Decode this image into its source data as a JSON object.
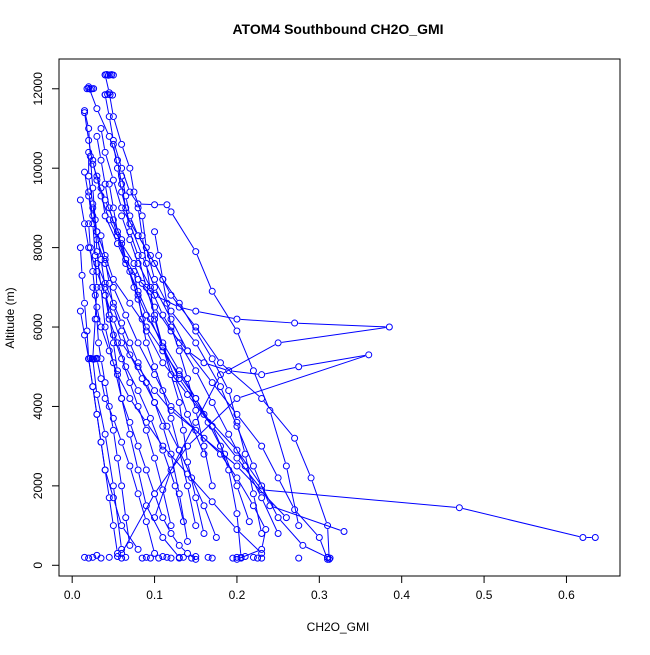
{
  "chart_data": {
    "type": "scatter",
    "title": "ATOM4 Southbound CH2O_GMI",
    "xlabel": "CH2O_GMI",
    "ylabel": "Altitude (m)",
    "xlim": [
      -0.016,
      0.665
    ],
    "ylim": [
      -270,
      12750
    ],
    "x_ticks": [
      "0.0",
      "0.1",
      "0.2",
      "0.3",
      "0.4",
      "0.5",
      "0.6"
    ],
    "y_ticks": [
      "0",
      "2000",
      "4000",
      "6000",
      "8000",
      "10000",
      "12000"
    ],
    "grid": false,
    "legend": "none",
    "color": "#0000ff",
    "marker": "open-circle",
    "connected": true,
    "series": [
      {
        "x": [
          0.02,
          0.03,
          0.045,
          0.055,
          0.06,
          0.065,
          0.07,
          0.08,
          0.09,
          0.1,
          0.11,
          0.13,
          0.16,
          0.2,
          0.23,
          0.25,
          0.28,
          0.31
        ],
        "y": [
          12050,
          11500,
          10800,
          10200,
          9600,
          9000,
          8400,
          7800,
          7000,
          6300,
          5500,
          4700,
          3800,
          2900,
          2000,
          1200,
          500,
          200
        ]
      },
      {
        "x": [
          0.04,
          0.045,
          0.05,
          0.06,
          0.07,
          0.075,
          0.085,
          0.09,
          0.1,
          0.12,
          0.15,
          0.18,
          0.2,
          0.22,
          0.24,
          0.33
        ],
        "y": [
          12350,
          11900,
          11300,
          10600,
          10000,
          9400,
          8800,
          8000,
          7200,
          6400,
          5600,
          4500,
          3500,
          2500,
          1500,
          850
        ]
      },
      {
        "x": [
          0.015,
          0.02,
          0.025,
          0.035,
          0.04,
          0.055,
          0.07,
          0.08,
          0.09,
          0.11,
          0.14,
          0.17,
          0.2,
          0.23,
          0.47,
          0.62,
          0.635
        ],
        "y": [
          11400,
          10700,
          10100,
          9500,
          8800,
          8100,
          7400,
          6700,
          5900,
          5100,
          4300,
          3500,
          2700,
          1900,
          1450,
          700,
          700
        ]
      },
      {
        "x": [
          0.025,
          0.03,
          0.04,
          0.05,
          0.06,
          0.065,
          0.08,
          0.1,
          0.13,
          0.15,
          0.2,
          0.27,
          0.385,
          0.25,
          0.18,
          0.15,
          0.12,
          0.1
        ],
        "y": [
          10200,
          9700,
          9200,
          8700,
          8200,
          7700,
          7200,
          6800,
          6500,
          6400,
          6200,
          6100,
          6000,
          5600,
          4800,
          3600,
          2400,
          1200
        ]
      },
      {
        "x": [
          0.03,
          0.035,
          0.045,
          0.06,
          0.075,
          0.085,
          0.1,
          0.12,
          0.14,
          0.16,
          0.19,
          0.23,
          0.275,
          0.36,
          0.2,
          0.14,
          0.1,
          0.06
        ],
        "y": [
          9800,
          9300,
          8700,
          8100,
          7600,
          7100,
          6500,
          5900,
          5400,
          5100,
          4900,
          4800,
          5000,
          5300,
          4200,
          3000,
          1800,
          300
        ]
      },
      {
        "x": [
          0.01,
          0.015,
          0.02,
          0.03,
          0.04,
          0.05,
          0.06,
          0.08,
          0.1,
          0.12,
          0.15,
          0.18,
          0.2,
          0.22,
          0.235,
          0.23,
          0.2
        ],
        "y": [
          9200,
          8600,
          8000,
          7400,
          6800,
          6200,
          5600,
          5000,
          4400,
          3900,
          3400,
          2800,
          2200,
          1500,
          900,
          400,
          150
        ]
      },
      {
        "x": [
          0.035,
          0.04,
          0.05,
          0.06,
          0.08,
          0.1,
          0.12,
          0.15,
          0.18,
          0.23,
          0.27,
          0.29,
          0.31,
          0.312
        ],
        "y": [
          11000,
          10400,
          9700,
          9000,
          8300,
          7600,
          6800,
          6000,
          5100,
          4200,
          3200,
          2200,
          1000,
          150
        ]
      },
      {
        "x": [
          0.06,
          0.065,
          0.07,
          0.08,
          0.095,
          0.11,
          0.13,
          0.15,
          0.17,
          0.19,
          0.2,
          0.21,
          0.22,
          0.23
        ],
        "y": [
          9800,
          9300,
          8800,
          8300,
          7800,
          7200,
          6600,
          5900,
          5200,
          4400,
          3600,
          2800,
          1800,
          800
        ]
      },
      {
        "x": [
          0.02,
          0.02,
          0.025,
          0.03,
          0.035,
          0.04,
          0.045,
          0.05,
          0.055,
          0.06,
          0.07,
          0.08,
          0.09,
          0.1,
          0.11,
          0.12,
          0.13,
          0.14,
          0.15
        ],
        "y": [
          10400,
          9800,
          9100,
          8400,
          7700,
          7000,
          6300,
          5600,
          4900,
          4200,
          3600,
          3000,
          2400,
          1800,
          1200,
          800,
          500,
          300,
          150
        ]
      },
      {
        "x": [
          0.015,
          0.02,
          0.022,
          0.025,
          0.028,
          0.03,
          0.035,
          0.04,
          0.05,
          0.06,
          0.07,
          0.08,
          0.09,
          0.11,
          0.13
        ],
        "y": [
          11450,
          11000,
          10300,
          9500,
          8700,
          7900,
          7000,
          6000,
          5100,
          4200,
          3300,
          2400,
          1500,
          700,
          200
        ]
      },
      {
        "x": [
          0.04,
          0.045,
          0.05,
          0.06,
          0.07,
          0.08,
          0.1,
          0.115,
          0.12,
          0.15,
          0.17,
          0.2,
          0.22,
          0.24,
          0.26,
          0.275
        ],
        "y": [
          11850,
          11300,
          10700,
          10000,
          9400,
          9100,
          9080,
          9080,
          8900,
          7900,
          6900,
          5900,
          4900,
          3900,
          2500,
          1000
        ]
      },
      {
        "x": [
          0.025,
          0.03,
          0.04,
          0.05,
          0.07,
          0.09,
          0.11,
          0.13,
          0.15,
          0.165,
          0.18,
          0.19,
          0.2,
          0.205
        ],
        "y": [
          9000,
          8400,
          7800,
          7200,
          6600,
          6000,
          5400,
          4800,
          4200,
          3600,
          3000,
          2400,
          1300,
          200
        ]
      },
      {
        "x": [
          0.02,
          0.022,
          0.025,
          0.028,
          0.03,
          0.032,
          0.035,
          0.04,
          0.045,
          0.05,
          0.055,
          0.06,
          0.065,
          0.07
        ],
        "y": [
          8600,
          8000,
          7400,
          6800,
          6200,
          5600,
          5200,
          4600,
          4000,
          3400,
          2700,
          2000,
          1200,
          500
        ]
      },
      {
        "x": [
          0.05,
          0.055,
          0.06,
          0.07,
          0.085,
          0.1,
          0.12,
          0.14,
          0.17,
          0.2,
          0.23,
          0.25,
          0.27,
          0.3,
          0.31
        ],
        "y": [
          10600,
          10000,
          9400,
          8600,
          7800,
          7000,
          6200,
          5400,
          4600,
          3800,
          3000,
          2200,
          1400,
          700,
          150
        ]
      },
      {
        "x": [
          0.03,
          0.035,
          0.04,
          0.045,
          0.055,
          0.065,
          0.08,
          0.095,
          0.11,
          0.12,
          0.13,
          0.135,
          0.14,
          0.15,
          0.16
        ],
        "y": [
          10800,
          10200,
          9600,
          9000,
          8300,
          7600,
          6900,
          6200,
          5500,
          4800,
          4100,
          3400,
          2600,
          1700,
          800
        ]
      },
      {
        "x": [
          0.01,
          0.012,
          0.015,
          0.018,
          0.02,
          0.025,
          0.03,
          0.035,
          0.04,
          0.045,
          0.05,
          0.055
        ],
        "y": [
          8000,
          7300,
          6600,
          5900,
          5200,
          4500,
          3800,
          3100,
          2400,
          1700,
          1000,
          300
        ]
      },
      {
        "x": [
          0.045,
          0.05,
          0.055,
          0.065,
          0.075,
          0.09,
          0.11,
          0.13,
          0.15,
          0.17,
          0.185,
          0.2,
          0.215
        ],
        "y": [
          9600,
          9000,
          8400,
          7700,
          7000,
          6300,
          5600,
          4900,
          4200,
          3500,
          2800,
          2000,
          1100
        ]
      },
      {
        "x": [
          0.03,
          0.04,
          0.05,
          0.06,
          0.07,
          0.08,
          0.09,
          0.1,
          0.11,
          0.12,
          0.13,
          0.14
        ],
        "y": [
          7600,
          7100,
          6600,
          6100,
          5600,
          5100,
          4600,
          4100,
          3500,
          2800,
          1800,
          600
        ]
      },
      {
        "x": [
          0.015,
          0.02,
          0.025,
          0.028,
          0.03,
          0.028,
          0.025,
          0.03,
          0.04,
          0.05,
          0.06
        ],
        "y": [
          9900,
          9300,
          8600,
          7800,
          7000,
          6200,
          5200,
          4300,
          3300,
          2000,
          400
        ]
      },
      {
        "x": [
          0.06,
          0.07,
          0.08,
          0.095,
          0.11,
          0.13,
          0.15,
          0.17,
          0.19,
          0.21,
          0.23,
          0.25
        ],
        "y": [
          8800,
          8200,
          7600,
          7000,
          6300,
          5600,
          4900,
          4100,
          3300,
          2500,
          1700,
          800
        ]
      },
      {
        "x": [
          0.02,
          0.025,
          0.03,
          0.04,
          0.05,
          0.065,
          0.08,
          0.1,
          0.12,
          0.16,
          0.2,
          0.26
        ],
        "y": [
          9400,
          8800,
          8200,
          7600,
          7000,
          6300,
          5600,
          4800,
          4000,
          3200,
          2500,
          1200
        ]
      },
      {
        "x": [
          0.075,
          0.08,
          0.085,
          0.09,
          0.1,
          0.11,
          0.12,
          0.13,
          0.14,
          0.15
        ],
        "y": [
          7400,
          6800,
          6200,
          5600,
          5000,
          4400,
          3700,
          2900,
          2000,
          1000
        ]
      },
      {
        "x": [
          0.035,
          0.04,
          0.045,
          0.05,
          0.06,
          0.07,
          0.085,
          0.1,
          0.115,
          0.13,
          0.145,
          0.16,
          0.175
        ],
        "y": [
          8300,
          7700,
          7100,
          6500,
          5900,
          5300,
          4700,
          4100,
          3500,
          2900,
          2200,
          1500,
          700
        ]
      },
      {
        "x": [
          0.1,
          0.105,
          0.11,
          0.115,
          0.12,
          0.13,
          0.14,
          0.15,
          0.16,
          0.17
        ],
        "y": [
          8400,
          7800,
          7200,
          6600,
          6000,
          5400,
          4700,
          3900,
          3000,
          2000
        ]
      },
      {
        "x": [
          0.05,
          0.06,
          0.07,
          0.08,
          0.09,
          0.1,
          0.11,
          0.12
        ],
        "y": [
          5800,
          5200,
          4600,
          4000,
          3400,
          2700,
          1900,
          1000
        ]
      },
      {
        "x": [
          0.03,
          0.035,
          0.04,
          0.05,
          0.06,
          0.07,
          0.08,
          0.09,
          0.1
        ],
        "y": [
          5200,
          4700,
          4200,
          3700,
          3100,
          2500,
          1800,
          1100,
          300
        ]
      },
      {
        "x": [
          0.025,
          0.03,
          0.035,
          0.045,
          0.055,
          0.07,
          0.09,
          0.11,
          0.14,
          0.17,
          0.2,
          0.23
        ],
        "y": [
          7000,
          6500,
          6000,
          5400,
          4800,
          4200,
          3600,
          3000,
          2300,
          1600,
          900,
          300
        ]
      },
      {
        "x": [
          0.08,
          0.085,
          0.09,
          0.095,
          0.1,
          0.11,
          0.125,
          0.14,
          0.16
        ],
        "y": [
          9000,
          8300,
          7600,
          6900,
          6200,
          5500,
          4700,
          3800,
          2800
        ]
      },
      {
        "x": [
          0.01,
          0.015,
          0.02,
          0.025,
          0.03,
          0.035,
          0.04,
          0.05,
          0.06,
          0.08
        ],
        "y": [
          6400,
          5800,
          5200,
          4500,
          3800,
          3100,
          2400,
          1700,
          1000,
          400
        ]
      },
      {
        "x": [
          0.04,
          0.045,
          0.055,
          0.065,
          0.08,
          0.095,
          0.11,
          0.125,
          0.135
        ],
        "y": [
          6800,
          6200,
          5600,
          5000,
          4400,
          3700,
          2900,
          2000,
          1100
        ]
      }
    ],
    "surface_points": {
      "x": [
        0.015,
        0.02,
        0.025,
        0.03,
        0.035,
        0.045,
        0.055,
        0.06,
        0.065,
        0.085,
        0.09,
        0.095,
        0.105,
        0.11,
        0.115,
        0.12,
        0.13,
        0.135,
        0.145,
        0.15,
        0.165,
        0.17,
        0.195,
        0.2,
        0.205,
        0.21,
        0.22,
        0.225,
        0.23,
        0.275,
        0.31,
        0.313
      ],
      "y": [
        200,
        180,
        200,
        250,
        180,
        200,
        220,
        180,
        200,
        180,
        200,
        180,
        180,
        220,
        200,
        180,
        180,
        200,
        180,
        220,
        200,
        180,
        180,
        200,
        180,
        220,
        200,
        180,
        180,
        180,
        200,
        180
      ]
    },
    "clusters": {
      "x": [
        0.02,
        0.022,
        0.024,
        0.026,
        0.028,
        0.03,
        0.018,
        0.02,
        0.022,
        0.024,
        0.026,
        0.04,
        0.042,
        0.044,
        0.046,
        0.048,
        0.05,
        0.04,
        0.043,
        0.046,
        0.049
      ],
      "y": [
        5200,
        5210,
        5200,
        5190,
        5200,
        5210,
        12000,
        12010,
        11990,
        12000,
        12005,
        12350,
        12360,
        12340,
        12350,
        12355,
        12345,
        11850,
        11860,
        11850,
        11840
      ]
    }
  }
}
